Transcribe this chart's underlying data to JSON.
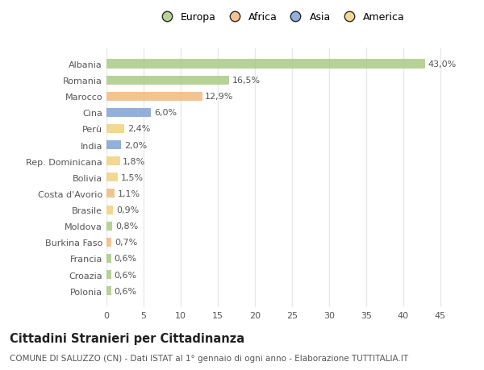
{
  "categories": [
    "Albania",
    "Romania",
    "Marocco",
    "Cina",
    "Perù",
    "India",
    "Rep. Dominicana",
    "Bolivia",
    "Costa d'Avorio",
    "Brasile",
    "Moldova",
    "Burkina Faso",
    "Francia",
    "Croazia",
    "Polonia"
  ],
  "values": [
    43.0,
    16.5,
    12.9,
    6.0,
    2.4,
    2.0,
    1.8,
    1.5,
    1.1,
    0.9,
    0.8,
    0.7,
    0.6,
    0.6,
    0.6
  ],
  "labels": [
    "43,0%",
    "16,5%",
    "12,9%",
    "6,0%",
    "2,4%",
    "2,0%",
    "1,8%",
    "1,5%",
    "1,1%",
    "0,9%",
    "0,8%",
    "0,7%",
    "0,6%",
    "0,6%",
    "0,6%"
  ],
  "continents": [
    "Europa",
    "Europa",
    "Africa",
    "Asia",
    "America",
    "Asia",
    "America",
    "America",
    "Africa",
    "America",
    "Europa",
    "Africa",
    "Europa",
    "Europa",
    "Europa"
  ],
  "colors": {
    "Europa": "#a8c97f",
    "Africa": "#f0b87a",
    "Asia": "#7b9fd4",
    "America": "#f0d07a"
  },
  "legend_order": [
    "Europa",
    "Africa",
    "Asia",
    "America"
  ],
  "legend_colors": [
    "#a8c97f",
    "#f0b87a",
    "#7b9fd4",
    "#f0d07a"
  ],
  "title": "Cittadini Stranieri per Cittadinanza",
  "subtitle": "COMUNE DI SALUZZO (CN) - Dati ISTAT al 1° gennaio di ogni anno - Elaborazione TUTTITALIA.IT",
  "xlim": [
    0,
    47
  ],
  "xticks": [
    0,
    5,
    10,
    15,
    20,
    25,
    30,
    35,
    40,
    45
  ],
  "bg_color": "#ffffff",
  "bar_height": 0.55,
  "grid_color": "#e8e8e8",
  "label_fontsize": 8.0,
  "tick_label_fontsize": 8.0,
  "title_fontsize": 10.5,
  "subtitle_fontsize": 7.5
}
